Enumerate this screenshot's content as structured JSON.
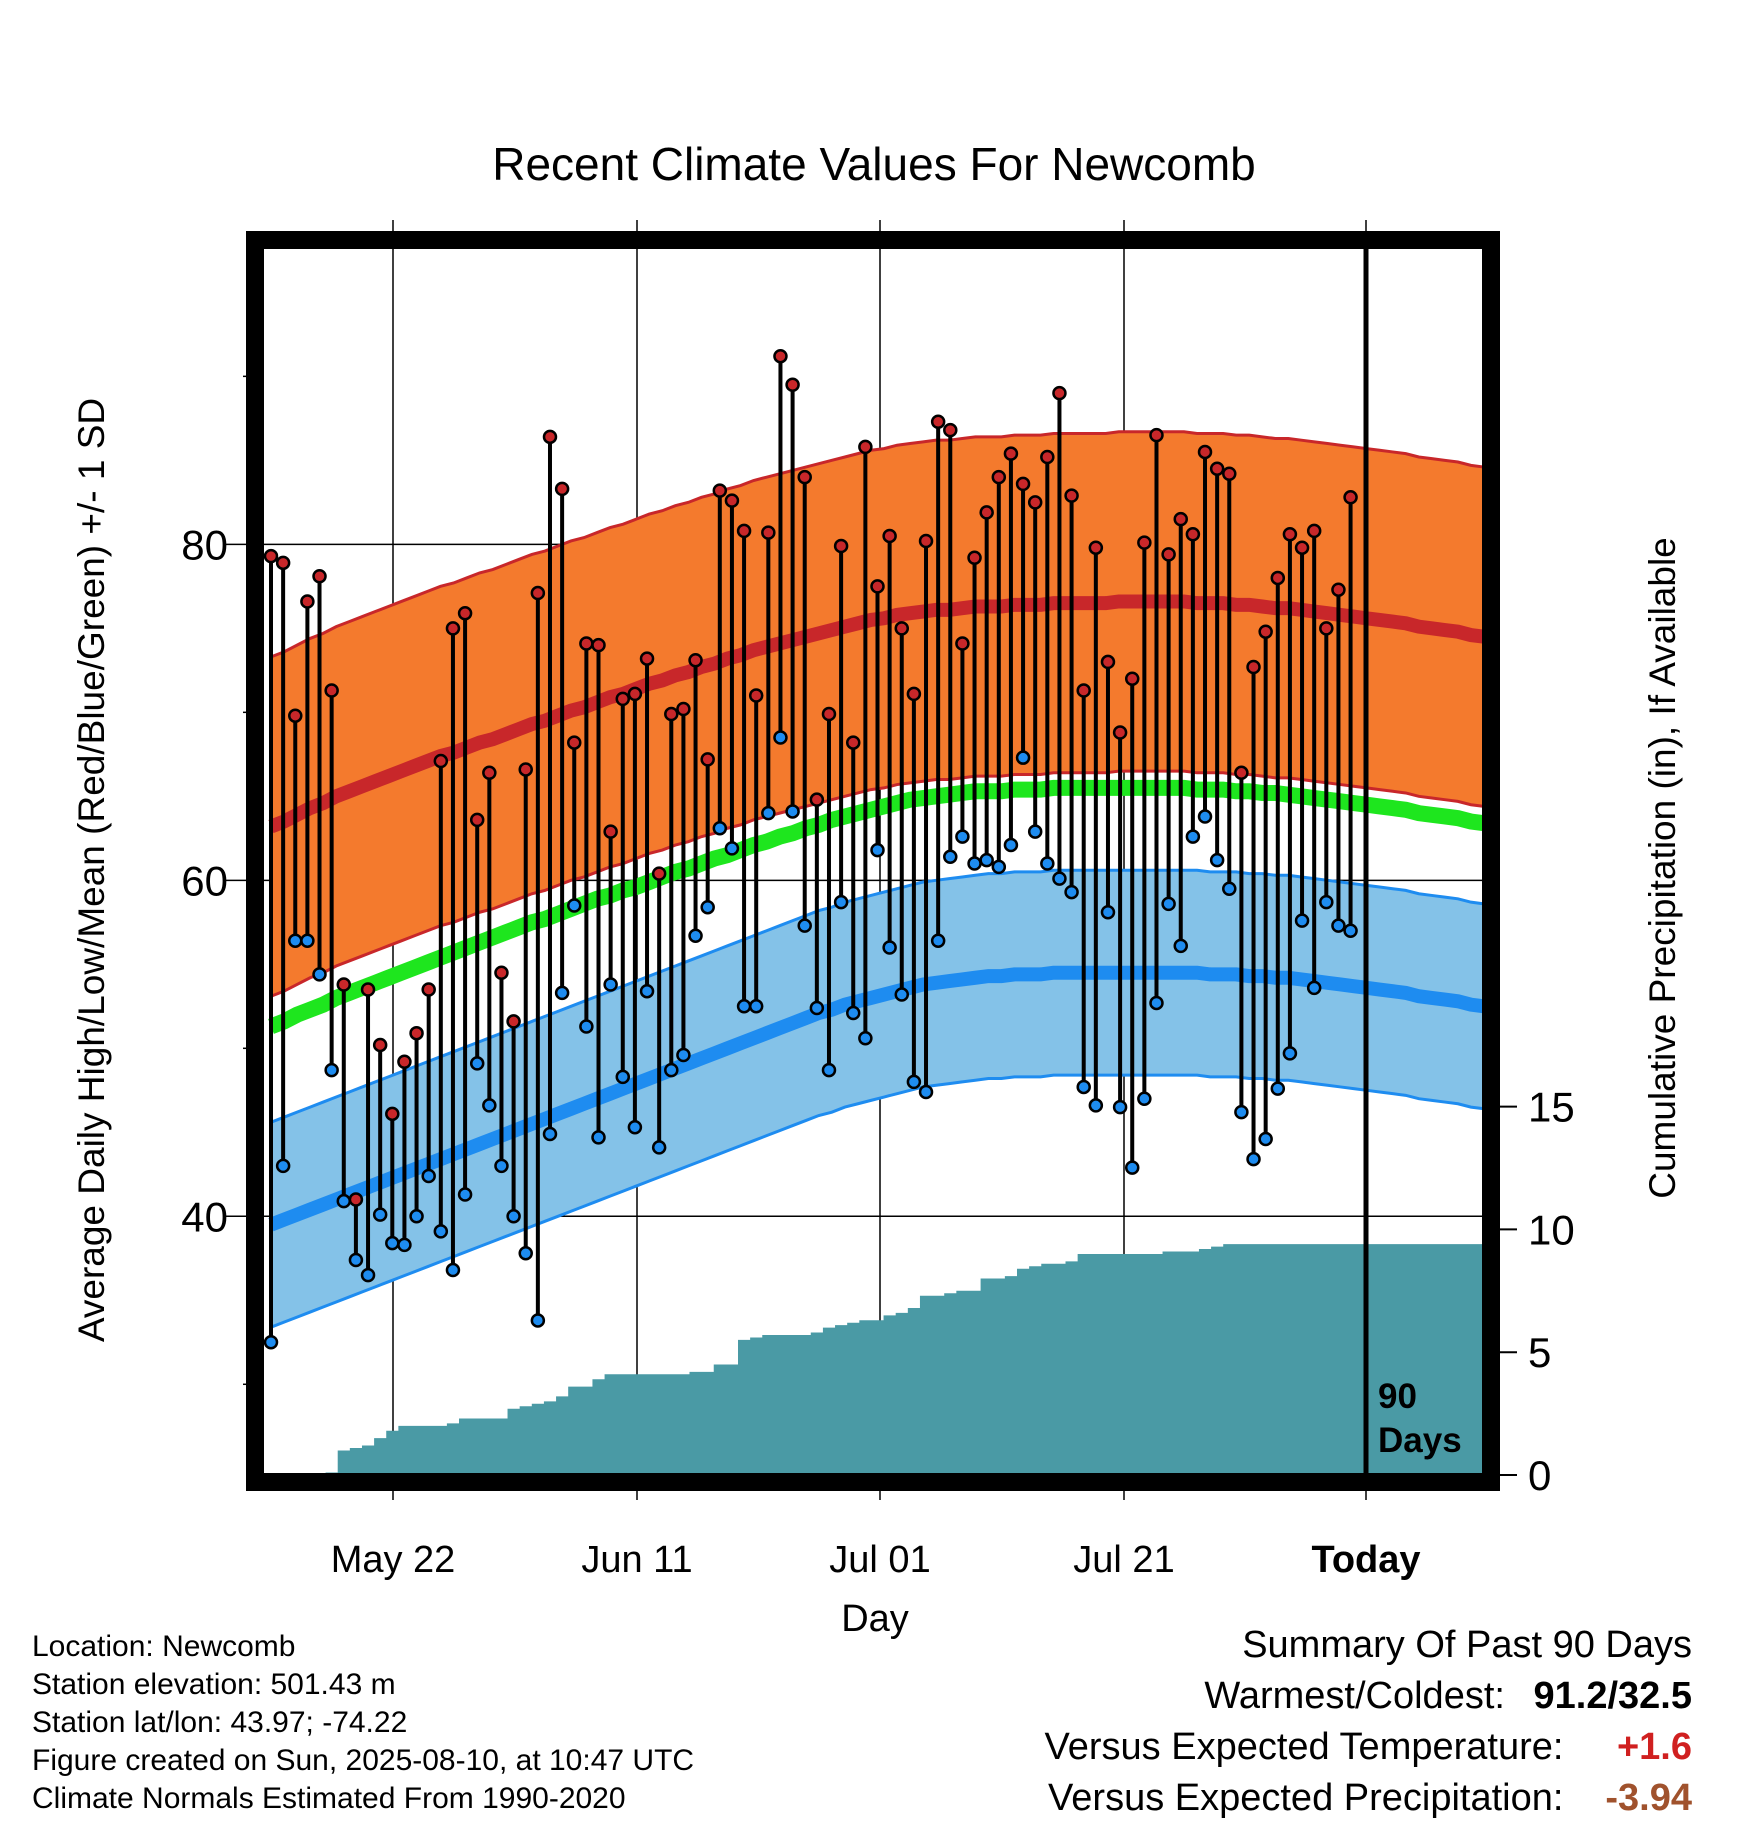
{
  "title": "Recent Climate Values For Newcomb",
  "xlabel": "Day",
  "ylabel_left": "Average Daily High/Low/Mean (Red/Blue/Green) +/- 1 SD",
  "ylabel_right": "Cumulative Precipitation (in), If Available",
  "days_label": [
    "90",
    "Days"
  ],
  "info": {
    "location": "Location: Newcomb",
    "elevation": "Station elevation: 501.43 m",
    "latlon": "Station lat/lon: 43.97; -74.22",
    "created": "Figure created on Sun, 2025-08-10, at 10:47 UTC",
    "normals": "Climate Normals Estimated From 1990-2020"
  },
  "summary": {
    "heading": "Summary Of Past 90 Days",
    "warm_cold_label": "Warmest/Coldest:",
    "warm_cold_value": "91.2/32.5",
    "temp_label": "Versus Expected Temperature:",
    "temp_value": "+1.6",
    "precip_label": "Versus Expected Precipitation:",
    "precip_value": "-3.94"
  },
  "colors": {
    "high": "#c8272a",
    "high_band": "#f47a2d",
    "low": "#1e8cf0",
    "low_band": "#84c2e8",
    "mean": "#1ee61e",
    "precip": "#4a9aa5",
    "temp_value": "#d02020",
    "precip_value": "#a0522d"
  },
  "chart_data": {
    "type": "line",
    "x_tick_labels": [
      "May 22",
      "Jun 11",
      "Jul 01",
      "Jul 21",
      "Today"
    ],
    "y_left_ticks": [
      40,
      60,
      80
    ],
    "y_right_ticks": [
      0,
      5,
      10,
      15
    ],
    "ylim_left": [
      24.6,
      97.7
    ],
    "ylim_right": [
      0,
      50
    ],
    "grid": true,
    "daily_high": [
      79.3,
      78.9,
      69.8,
      76.6,
      78.1,
      71.3,
      53.8,
      41.0,
      53.5,
      50.2,
      46.1,
      49.2,
      50.9,
      53.5,
      67.1,
      75.0,
      75.9,
      63.6,
      66.4,
      54.5,
      51.6,
      66.6,
      77.1,
      86.4,
      83.3,
      68.2,
      74.1,
      74.0,
      62.9,
      70.8,
      71.1,
      73.2,
      60.4,
      69.9,
      70.2,
      73.1,
      67.2,
      83.2,
      82.6,
      80.8,
      71.0,
      80.7,
      91.2,
      89.5,
      84.0,
      64.8,
      69.9,
      79.9,
      68.2,
      85.8,
      77.5,
      80.5,
      75.0,
      71.1,
      80.2,
      87.3,
      86.8,
      74.1,
      79.2,
      81.9,
      84.0,
      85.4,
      83.6,
      82.5,
      85.2,
      89.0,
      82.9,
      71.3,
      79.8,
      73.0,
      68.8,
      72.0,
      80.1,
      86.5,
      79.4,
      81.5,
      80.6,
      85.5,
      84.5,
      84.2,
      66.4,
      72.7,
      74.8,
      78.0,
      80.6,
      79.8,
      80.8,
      75.0,
      77.3,
      82.8
    ],
    "daily_low": [
      32.5,
      43.0,
      56.4,
      56.4,
      54.4,
      48.7,
      40.9,
      37.4,
      36.5,
      40.1,
      38.4,
      38.3,
      40.0,
      42.4,
      39.1,
      36.8,
      41.3,
      49.1,
      46.6,
      43.0,
      40.0,
      37.8,
      33.8,
      44.9,
      53.3,
      58.5,
      51.3,
      44.7,
      53.8,
      48.3,
      45.3,
      53.4,
      44.1,
      48.7,
      49.6,
      56.7,
      58.4,
      63.1,
      61.9,
      52.5,
      52.5,
      64.0,
      68.5,
      64.1,
      57.3,
      52.4,
      48.7,
      58.7,
      52.1,
      50.6,
      61.8,
      56.0,
      53.2,
      48.0,
      47.4,
      56.4,
      61.4,
      62.6,
      61.0,
      61.2,
      60.8,
      62.1,
      67.3,
      62.9,
      61.0,
      60.1,
      59.3,
      47.7,
      46.6,
      58.1,
      46.5,
      42.9,
      47.0,
      52.7,
      58.6,
      56.1,
      62.6,
      63.8,
      61.2,
      59.5,
      46.2,
      43.4,
      44.6,
      47.6,
      49.7,
      57.6,
      53.6,
      58.7,
      57.3,
      57.0
    ],
    "normal_high": [
      63.2,
      63.5,
      63.9,
      64.3,
      64.6,
      65.0,
      65.3,
      65.6,
      65.9,
      66.2,
      66.5,
      66.8,
      67.1,
      67.4,
      67.6,
      67.9,
      68.2,
      68.4,
      68.7,
      69.0,
      69.3,
      69.5,
      69.8,
      70.1,
      70.3,
      70.6,
      70.9,
      71.1,
      71.4,
      71.7,
      71.9,
      72.2,
      72.4,
      72.7,
      72.9,
      73.2,
      73.4,
      73.7,
      73.9,
      74.1,
      74.3,
      74.5,
      74.7,
      74.9,
      75.1,
      75.3,
      75.5,
      75.6,
      75.8,
      75.9,
      76.0,
      76.1,
      76.1,
      76.2,
      76.3,
      76.3,
      76.3,
      76.4,
      76.4,
      76.4,
      76.5,
      76.5,
      76.5,
      76.5,
      76.5,
      76.6,
      76.6,
      76.6,
      76.6,
      76.6,
      76.6,
      76.5,
      76.5,
      76.5,
      76.4,
      76.4,
      76.3,
      76.2,
      76.2,
      76.1,
      76.0,
      75.9,
      75.8,
      75.7,
      75.6,
      75.5,
      75.4,
      75.3,
      75.1,
      75.0,
      74.9,
      74.8,
      74.6,
      74.5
    ],
    "normal_high_sd": 10.1,
    "normal_low": [
      39.5,
      39.8,
      40.1,
      40.4,
      40.7,
      41.0,
      41.3,
      41.6,
      41.9,
      42.2,
      42.5,
      42.8,
      43.1,
      43.4,
      43.7,
      44.0,
      44.3,
      44.6,
      44.9,
      45.2,
      45.5,
      45.8,
      46.1,
      46.4,
      46.7,
      47.0,
      47.3,
      47.6,
      47.9,
      48.2,
      48.5,
      48.8,
      49.1,
      49.4,
      49.7,
      50.0,
      50.3,
      50.6,
      50.9,
      51.2,
      51.5,
      51.8,
      52.1,
      52.3,
      52.6,
      52.8,
      53.0,
      53.2,
      53.4,
      53.6,
      53.8,
      53.9,
      54.0,
      54.1,
      54.2,
      54.3,
      54.3,
      54.4,
      54.4,
      54.4,
      54.5,
      54.5,
      54.5,
      54.5,
      54.5,
      54.5,
      54.5,
      54.5,
      54.5,
      54.5,
      54.5,
      54.5,
      54.4,
      54.4,
      54.4,
      54.3,
      54.3,
      54.2,
      54.2,
      54.1,
      54.0,
      53.9,
      53.8,
      53.7,
      53.6,
      53.5,
      53.4,
      53.3,
      53.1,
      53.0,
      52.9,
      52.8,
      52.6,
      52.5
    ],
    "normal_low_sd": 6.1,
    "normal_mean": [
      51.3,
      51.6,
      52.0,
      52.3,
      52.6,
      53.0,
      53.3,
      53.6,
      53.9,
      54.2,
      54.5,
      54.8,
      55.1,
      55.4,
      55.7,
      56.0,
      56.3,
      56.6,
      56.9,
      57.2,
      57.5,
      57.7,
      58.0,
      58.3,
      58.6,
      58.9,
      59.1,
      59.4,
      59.6,
      59.9,
      60.2,
      60.5,
      60.7,
      61.0,
      61.3,
      61.5,
      61.8,
      62.1,
      62.3,
      62.6,
      62.8,
      63.1,
      63.3,
      63.6,
      63.8,
      64.0,
      64.2,
      64.4,
      64.6,
      64.8,
      64.9,
      65.0,
      65.1,
      65.2,
      65.3,
      65.3,
      65.3,
      65.4,
      65.4,
      65.4,
      65.5,
      65.5,
      65.5,
      65.5,
      65.5,
      65.5,
      65.5,
      65.5,
      65.5,
      65.5,
      65.5,
      65.4,
      65.4,
      65.4,
      65.3,
      65.3,
      65.2,
      65.2,
      65.1,
      65.0,
      64.9,
      64.8,
      64.7,
      64.6,
      64.5,
      64.4,
      64.3,
      64.2,
      64.0,
      63.9,
      63.8,
      63.7,
      63.5,
      63.4
    ],
    "cumulative_precip": [
      0,
      0,
      0,
      0,
      0,
      0.1,
      1.0,
      1.1,
      1.2,
      1.5,
      1.8,
      2.0,
      2.0,
      2.0,
      2.0,
      2.1,
      2.3,
      2.3,
      2.3,
      2.3,
      2.7,
      2.8,
      2.9,
      3.0,
      3.2,
      3.6,
      3.6,
      3.9,
      4.1,
      4.1,
      4.1,
      4.1,
      4.1,
      4.1,
      4.1,
      4.2,
      4.2,
      4.5,
      4.5,
      5.5,
      5.6,
      5.7,
      5.7,
      5.7,
      5.7,
      5.8,
      6.0,
      6.1,
      6.2,
      6.3,
      6.3,
      6.5,
      6.6,
      6.8,
      7.3,
      7.3,
      7.4,
      7.5,
      7.5,
      8.0,
      8.0,
      8.1,
      8.4,
      8.5,
      8.6,
      8.6,
      8.7,
      9.0,
      9.0,
      9.0,
      9.0,
      9.0,
      9.0,
      9.0,
      9.1,
      9.1,
      9.1,
      9.2,
      9.3,
      9.4,
      9.4,
      9.4,
      9.4,
      9.4,
      9.4,
      9.4,
      9.4,
      9.4,
      9.4,
      9.4,
      9.4,
      9.4,
      9.4,
      9.4
    ]
  }
}
